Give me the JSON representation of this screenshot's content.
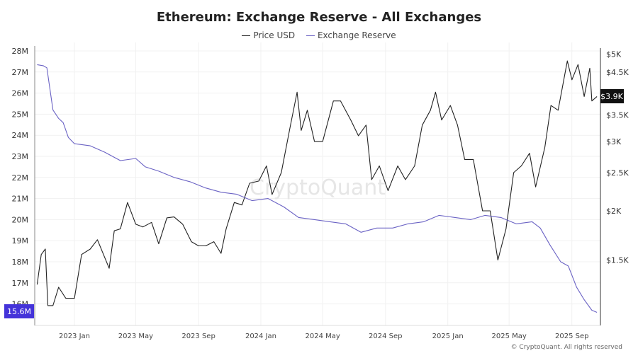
{
  "chart_data": {
    "type": "line",
    "title": "Ethereum: Exchange Reserve - All Exchanges",
    "legend": [
      "Price USD",
      "Exchange Reserve"
    ],
    "legend_placement": "top",
    "grid": true,
    "colors": {
      "price": "#222222",
      "reserve": "#6a62c4",
      "reserve_badge": "#4433d9",
      "price_badge": "#111111"
    },
    "left_axis": {
      "label": "",
      "range": [
        15.6,
        28
      ],
      "ticks": [
        "28M",
        "27M",
        "26M",
        "25M",
        "24M",
        "23M",
        "22M",
        "21M",
        "20M",
        "19M",
        "18M",
        "17M",
        "16M"
      ],
      "tick_values": [
        28,
        27,
        26,
        25,
        24,
        23,
        22,
        21,
        20,
        19,
        18,
        17,
        16
      ],
      "current_label": "15.6M"
    },
    "right_axis": {
      "label": "",
      "scale": "log",
      "ticks": [
        "$5K",
        "$4.5K",
        "$3.5K",
        "$3K",
        "$2.5K",
        "$2K",
        "$1.5K"
      ],
      "tick_values": [
        5000,
        4500,
        3500,
        3000,
        2500,
        2000,
        1500
      ],
      "current_label": "$3.9K"
    },
    "x_axis": {
      "ticks": [
        "2023 Jan",
        "2023 May",
        "2023 Sep",
        "2024 Jan",
        "2024 May",
        "2024 Sep",
        "2025 Jan",
        "2025 May",
        "2025 Sep"
      ],
      "tick_dates": [
        "2023-01-01",
        "2023-05-01",
        "2023-09-01",
        "2024-01-01",
        "2024-05-01",
        "2024-09-01",
        "2025-01-01",
        "2025-05-01",
        "2025-09-01"
      ]
    },
    "series": [
      {
        "name": "Price USD",
        "axis": "right",
        "points": [
          [
            "2022-10-20",
            1300
          ],
          [
            "2022-10-28",
            1550
          ],
          [
            "2022-11-05",
            1600
          ],
          [
            "2022-11-10",
            1150
          ],
          [
            "2022-11-20",
            1150
          ],
          [
            "2022-12-01",
            1280
          ],
          [
            "2022-12-15",
            1200
          ],
          [
            "2023-01-01",
            1200
          ],
          [
            "2023-01-15",
            1550
          ],
          [
            "2023-02-01",
            1600
          ],
          [
            "2023-02-15",
            1690
          ],
          [
            "2023-03-10",
            1430
          ],
          [
            "2023-03-20",
            1780
          ],
          [
            "2023-04-01",
            1800
          ],
          [
            "2023-04-15",
            2100
          ],
          [
            "2023-05-01",
            1850
          ],
          [
            "2023-05-15",
            1820
          ],
          [
            "2023-06-01",
            1870
          ],
          [
            "2023-06-15",
            1650
          ],
          [
            "2023-07-01",
            1920
          ],
          [
            "2023-07-15",
            1930
          ],
          [
            "2023-08-01",
            1850
          ],
          [
            "2023-08-18",
            1670
          ],
          [
            "2023-09-01",
            1630
          ],
          [
            "2023-09-15",
            1630
          ],
          [
            "2023-10-01",
            1670
          ],
          [
            "2023-10-15",
            1560
          ],
          [
            "2023-10-25",
            1800
          ],
          [
            "2023-11-10",
            2100
          ],
          [
            "2023-11-25",
            2070
          ],
          [
            "2023-12-10",
            2350
          ],
          [
            "2023-12-28",
            2380
          ],
          [
            "2024-01-12",
            2600
          ],
          [
            "2024-01-23",
            2200
          ],
          [
            "2024-02-10",
            2500
          ],
          [
            "2024-02-28",
            3300
          ],
          [
            "2024-03-12",
            4000
          ],
          [
            "2024-03-20",
            3200
          ],
          [
            "2024-04-01",
            3600
          ],
          [
            "2024-04-15",
            3000
          ],
          [
            "2024-05-01",
            3000
          ],
          [
            "2024-05-22",
            3800
          ],
          [
            "2024-06-05",
            3800
          ],
          [
            "2024-06-25",
            3400
          ],
          [
            "2024-07-10",
            3100
          ],
          [
            "2024-07-25",
            3300
          ],
          [
            "2024-08-05",
            2400
          ],
          [
            "2024-08-20",
            2600
          ],
          [
            "2024-09-06",
            2250
          ],
          [
            "2024-09-25",
            2600
          ],
          [
            "2024-10-10",
            2400
          ],
          [
            "2024-10-28",
            2600
          ],
          [
            "2024-11-12",
            3300
          ],
          [
            "2024-11-28",
            3600
          ],
          [
            "2024-12-08",
            4000
          ],
          [
            "2024-12-20",
            3400
          ],
          [
            "2025-01-06",
            3700
          ],
          [
            "2025-01-20",
            3300
          ],
          [
            "2025-02-03",
            2700
          ],
          [
            "2025-02-20",
            2700
          ],
          [
            "2025-03-10",
            2000
          ],
          [
            "2025-03-25",
            2000
          ],
          [
            "2025-04-09",
            1500
          ],
          [
            "2025-04-25",
            1800
          ],
          [
            "2025-05-10",
            2500
          ],
          [
            "2025-05-25",
            2600
          ],
          [
            "2025-06-10",
            2800
          ],
          [
            "2025-06-22",
            2300
          ],
          [
            "2025-07-10",
            2900
          ],
          [
            "2025-07-22",
            3700
          ],
          [
            "2025-08-05",
            3600
          ],
          [
            "2025-08-23",
            4800
          ],
          [
            "2025-09-01",
            4300
          ],
          [
            "2025-09-13",
            4700
          ],
          [
            "2025-09-25",
            3900
          ],
          [
            "2025-10-06",
            4600
          ],
          [
            "2025-10-10",
            3800
          ],
          [
            "2025-10-20",
            3900
          ]
        ]
      },
      {
        "name": "Exchange Reserve",
        "axis": "left",
        "points": [
          [
            "2022-10-20",
            27.35
          ],
          [
            "2022-11-01",
            27.3
          ],
          [
            "2022-11-08",
            27.2
          ],
          [
            "2022-11-20",
            25.2
          ],
          [
            "2022-12-01",
            24.8
          ],
          [
            "2022-12-10",
            24.6
          ],
          [
            "2022-12-20",
            23.9
          ],
          [
            "2023-01-01",
            23.6
          ],
          [
            "2023-02-01",
            23.5
          ],
          [
            "2023-03-01",
            23.2
          ],
          [
            "2023-04-01",
            22.8
          ],
          [
            "2023-05-01",
            22.9
          ],
          [
            "2023-05-20",
            22.5
          ],
          [
            "2023-06-15",
            22.3
          ],
          [
            "2023-07-15",
            22.0
          ],
          [
            "2023-08-15",
            21.8
          ],
          [
            "2023-09-15",
            21.5
          ],
          [
            "2023-10-15",
            21.3
          ],
          [
            "2023-11-15",
            21.2
          ],
          [
            "2023-12-15",
            20.9
          ],
          [
            "2024-01-15",
            21.0
          ],
          [
            "2024-02-15",
            20.6
          ],
          [
            "2024-03-15",
            20.1
          ],
          [
            "2024-04-15",
            20.0
          ],
          [
            "2024-05-15",
            19.9
          ],
          [
            "2024-06-15",
            19.8
          ],
          [
            "2024-07-15",
            19.4
          ],
          [
            "2024-08-15",
            19.6
          ],
          [
            "2024-09-15",
            19.6
          ],
          [
            "2024-10-15",
            19.8
          ],
          [
            "2024-11-15",
            19.9
          ],
          [
            "2024-12-15",
            20.2
          ],
          [
            "2025-01-15",
            20.1
          ],
          [
            "2025-02-15",
            20.0
          ],
          [
            "2025-03-15",
            20.2
          ],
          [
            "2025-04-15",
            20.1
          ],
          [
            "2025-05-15",
            19.8
          ],
          [
            "2025-06-15",
            19.9
          ],
          [
            "2025-07-01",
            19.6
          ],
          [
            "2025-07-20",
            18.8
          ],
          [
            "2025-08-10",
            18.0
          ],
          [
            "2025-08-25",
            17.8
          ],
          [
            "2025-09-10",
            16.8
          ],
          [
            "2025-09-25",
            16.2
          ],
          [
            "2025-10-10",
            15.7
          ],
          [
            "2025-10-20",
            15.6
          ]
        ]
      }
    ]
  },
  "watermark": "CryptoQuant",
  "footer": "© CryptoQuant. All rights reserved"
}
